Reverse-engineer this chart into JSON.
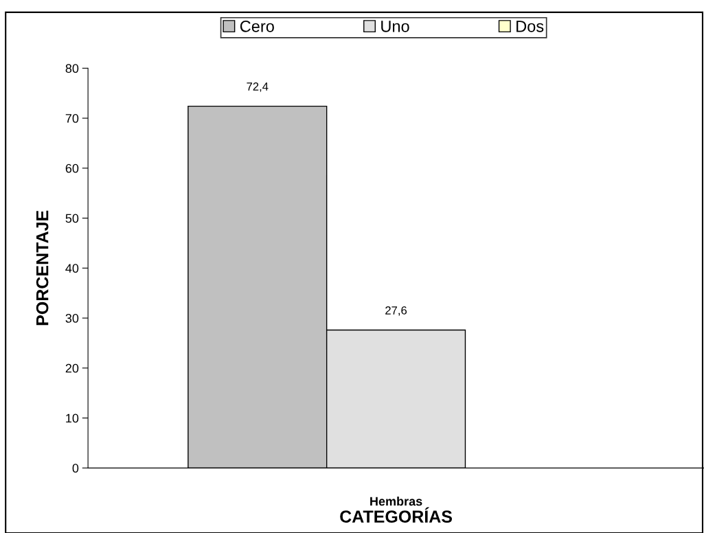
{
  "chart_data": {
    "type": "bar",
    "categories": [
      "Hembras"
    ],
    "xlabel": "CATEGORÍAS",
    "ylabel": "PORCENTAJE",
    "series": [
      {
        "name": "Cero",
        "color": "#c0c0c0",
        "values": [
          72.4
        ],
        "value_labels": [
          "72,4"
        ]
      },
      {
        "name": "Uno",
        "color": "#e0e0e0",
        "values": [
          27.6
        ],
        "value_labels": [
          "27,6"
        ]
      },
      {
        "name": "Dos",
        "color": "#ffffcc",
        "values": [
          null
        ]
      }
    ],
    "ylim": [
      0,
      80
    ],
    "yticks": [
      0,
      10,
      20,
      30,
      40,
      50,
      60,
      70,
      80
    ],
    "legend": "top",
    "grid": false
  }
}
